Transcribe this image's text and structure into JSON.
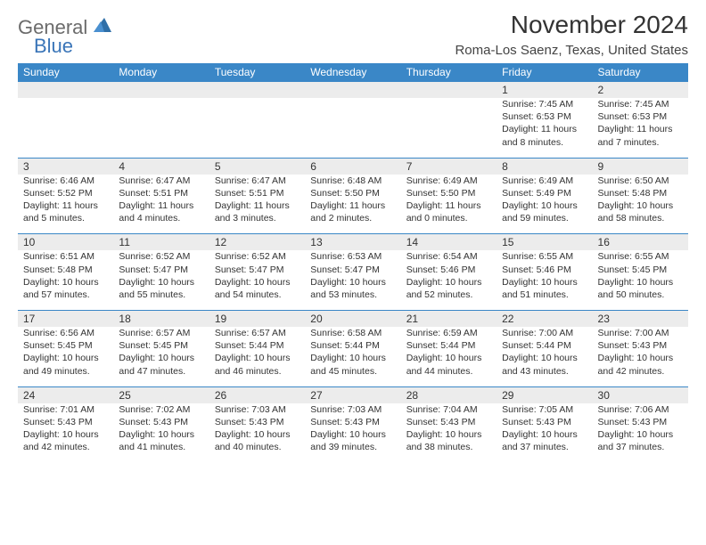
{
  "brand": {
    "part1": "General",
    "part2": "Blue",
    "color1": "#6b6b6b",
    "color2": "#3a75b8"
  },
  "title": "November 2024",
  "location": "Roma-Los Saenz, Texas, United States",
  "colors": {
    "header_bg": "#3a87c7",
    "header_text": "#ffffff",
    "daynum_bg": "#ececec",
    "border": "#3a87c7",
    "text": "#333333",
    "page_bg": "#ffffff"
  },
  "weekdays": [
    "Sunday",
    "Monday",
    "Tuesday",
    "Wednesday",
    "Thursday",
    "Friday",
    "Saturday"
  ],
  "weeks": [
    [
      {
        "n": "",
        "lines": []
      },
      {
        "n": "",
        "lines": []
      },
      {
        "n": "",
        "lines": []
      },
      {
        "n": "",
        "lines": []
      },
      {
        "n": "",
        "lines": []
      },
      {
        "n": "1",
        "lines": [
          "Sunrise: 7:45 AM",
          "Sunset: 6:53 PM",
          "Daylight: 11 hours",
          "and 8 minutes."
        ]
      },
      {
        "n": "2",
        "lines": [
          "Sunrise: 7:45 AM",
          "Sunset: 6:53 PM",
          "Daylight: 11 hours",
          "and 7 minutes."
        ]
      }
    ],
    [
      {
        "n": "3",
        "lines": [
          "Sunrise: 6:46 AM",
          "Sunset: 5:52 PM",
          "Daylight: 11 hours",
          "and 5 minutes."
        ]
      },
      {
        "n": "4",
        "lines": [
          "Sunrise: 6:47 AM",
          "Sunset: 5:51 PM",
          "Daylight: 11 hours",
          "and 4 minutes."
        ]
      },
      {
        "n": "5",
        "lines": [
          "Sunrise: 6:47 AM",
          "Sunset: 5:51 PM",
          "Daylight: 11 hours",
          "and 3 minutes."
        ]
      },
      {
        "n": "6",
        "lines": [
          "Sunrise: 6:48 AM",
          "Sunset: 5:50 PM",
          "Daylight: 11 hours",
          "and 2 minutes."
        ]
      },
      {
        "n": "7",
        "lines": [
          "Sunrise: 6:49 AM",
          "Sunset: 5:50 PM",
          "Daylight: 11 hours",
          "and 0 minutes."
        ]
      },
      {
        "n": "8",
        "lines": [
          "Sunrise: 6:49 AM",
          "Sunset: 5:49 PM",
          "Daylight: 10 hours",
          "and 59 minutes."
        ]
      },
      {
        "n": "9",
        "lines": [
          "Sunrise: 6:50 AM",
          "Sunset: 5:48 PM",
          "Daylight: 10 hours",
          "and 58 minutes."
        ]
      }
    ],
    [
      {
        "n": "10",
        "lines": [
          "Sunrise: 6:51 AM",
          "Sunset: 5:48 PM",
          "Daylight: 10 hours",
          "and 57 minutes."
        ]
      },
      {
        "n": "11",
        "lines": [
          "Sunrise: 6:52 AM",
          "Sunset: 5:47 PM",
          "Daylight: 10 hours",
          "and 55 minutes."
        ]
      },
      {
        "n": "12",
        "lines": [
          "Sunrise: 6:52 AM",
          "Sunset: 5:47 PM",
          "Daylight: 10 hours",
          "and 54 minutes."
        ]
      },
      {
        "n": "13",
        "lines": [
          "Sunrise: 6:53 AM",
          "Sunset: 5:47 PM",
          "Daylight: 10 hours",
          "and 53 minutes."
        ]
      },
      {
        "n": "14",
        "lines": [
          "Sunrise: 6:54 AM",
          "Sunset: 5:46 PM",
          "Daylight: 10 hours",
          "and 52 minutes."
        ]
      },
      {
        "n": "15",
        "lines": [
          "Sunrise: 6:55 AM",
          "Sunset: 5:46 PM",
          "Daylight: 10 hours",
          "and 51 minutes."
        ]
      },
      {
        "n": "16",
        "lines": [
          "Sunrise: 6:55 AM",
          "Sunset: 5:45 PM",
          "Daylight: 10 hours",
          "and 50 minutes."
        ]
      }
    ],
    [
      {
        "n": "17",
        "lines": [
          "Sunrise: 6:56 AM",
          "Sunset: 5:45 PM",
          "Daylight: 10 hours",
          "and 49 minutes."
        ]
      },
      {
        "n": "18",
        "lines": [
          "Sunrise: 6:57 AM",
          "Sunset: 5:45 PM",
          "Daylight: 10 hours",
          "and 47 minutes."
        ]
      },
      {
        "n": "19",
        "lines": [
          "Sunrise: 6:57 AM",
          "Sunset: 5:44 PM",
          "Daylight: 10 hours",
          "and 46 minutes."
        ]
      },
      {
        "n": "20",
        "lines": [
          "Sunrise: 6:58 AM",
          "Sunset: 5:44 PM",
          "Daylight: 10 hours",
          "and 45 minutes."
        ]
      },
      {
        "n": "21",
        "lines": [
          "Sunrise: 6:59 AM",
          "Sunset: 5:44 PM",
          "Daylight: 10 hours",
          "and 44 minutes."
        ]
      },
      {
        "n": "22",
        "lines": [
          "Sunrise: 7:00 AM",
          "Sunset: 5:44 PM",
          "Daylight: 10 hours",
          "and 43 minutes."
        ]
      },
      {
        "n": "23",
        "lines": [
          "Sunrise: 7:00 AM",
          "Sunset: 5:43 PM",
          "Daylight: 10 hours",
          "and 42 minutes."
        ]
      }
    ],
    [
      {
        "n": "24",
        "lines": [
          "Sunrise: 7:01 AM",
          "Sunset: 5:43 PM",
          "Daylight: 10 hours",
          "and 42 minutes."
        ]
      },
      {
        "n": "25",
        "lines": [
          "Sunrise: 7:02 AM",
          "Sunset: 5:43 PM",
          "Daylight: 10 hours",
          "and 41 minutes."
        ]
      },
      {
        "n": "26",
        "lines": [
          "Sunrise: 7:03 AM",
          "Sunset: 5:43 PM",
          "Daylight: 10 hours",
          "and 40 minutes."
        ]
      },
      {
        "n": "27",
        "lines": [
          "Sunrise: 7:03 AM",
          "Sunset: 5:43 PM",
          "Daylight: 10 hours",
          "and 39 minutes."
        ]
      },
      {
        "n": "28",
        "lines": [
          "Sunrise: 7:04 AM",
          "Sunset: 5:43 PM",
          "Daylight: 10 hours",
          "and 38 minutes."
        ]
      },
      {
        "n": "29",
        "lines": [
          "Sunrise: 7:05 AM",
          "Sunset: 5:43 PM",
          "Daylight: 10 hours",
          "and 37 minutes."
        ]
      },
      {
        "n": "30",
        "lines": [
          "Sunrise: 7:06 AM",
          "Sunset: 5:43 PM",
          "Daylight: 10 hours",
          "and 37 minutes."
        ]
      }
    ]
  ]
}
